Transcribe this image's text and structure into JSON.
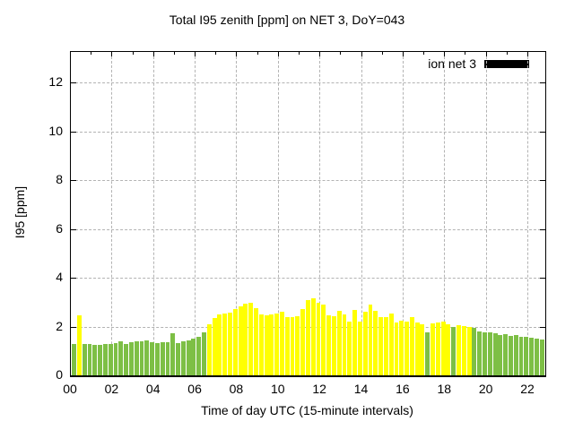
{
  "title": "Total I95 zenith [ppm] on NET 3, DoY=043",
  "legend": {
    "label": "ion net 3",
    "swatch_color": "#000000"
  },
  "axes": {
    "ylabel": "I95 [ppm]",
    "xlabel": "Time of day UTC (15-minute intervals)",
    "y_ticks": [
      0,
      2,
      4,
      6,
      8,
      10,
      12
    ],
    "x_tick_hours": [
      0,
      2,
      4,
      6,
      8,
      10,
      12,
      14,
      16,
      18,
      20,
      22
    ],
    "x_tick_labels": [
      "00",
      "02",
      "04",
      "06",
      "08",
      "10",
      "12",
      "14",
      "16",
      "18",
      "20",
      "22"
    ],
    "ylim": [
      0,
      13.25
    ],
    "xlim_hours": [
      0,
      22.82
    ],
    "grid": "dashed"
  },
  "colors": {
    "green": "#7dbf45",
    "yellow": "#ffff00",
    "grid": "#b3b3b3",
    "axis": "#000000",
    "background": "#ffffff"
  },
  "chart_data": {
    "type": "bar",
    "title": "Total I95 zenith [ppm] on NET 3, DoY=043",
    "xlabel": "Time of day UTC (15-minute intervals)",
    "ylabel": "I95 [ppm]",
    "ylim": [
      0,
      13.25
    ],
    "interval_minutes": 15,
    "legend_entry": "ion net 3",
    "x": [
      "00:00",
      "00:15",
      "00:30",
      "00:45",
      "01:00",
      "01:15",
      "01:30",
      "01:45",
      "02:00",
      "02:15",
      "02:30",
      "02:45",
      "03:00",
      "03:15",
      "03:30",
      "03:45",
      "04:00",
      "04:15",
      "04:30",
      "04:45",
      "05:00",
      "05:15",
      "05:30",
      "05:45",
      "06:00",
      "06:15",
      "06:30",
      "06:45",
      "07:00",
      "07:15",
      "07:30",
      "07:45",
      "08:00",
      "08:15",
      "08:30",
      "08:45",
      "09:00",
      "09:15",
      "09:30",
      "09:45",
      "10:00",
      "10:15",
      "10:30",
      "10:45",
      "11:00",
      "11:15",
      "11:30",
      "11:45",
      "12:00",
      "12:15",
      "12:30",
      "12:45",
      "13:00",
      "13:15",
      "13:30",
      "13:45",
      "14:00",
      "14:15",
      "14:30",
      "14:45",
      "15:00",
      "15:15",
      "15:30",
      "15:45",
      "16:00",
      "16:15",
      "16:30",
      "16:45",
      "17:00",
      "17:15",
      "17:30",
      "17:45",
      "18:00",
      "18:15",
      "18:30",
      "18:45",
      "19:00",
      "19:15",
      "19:30",
      "19:45",
      "20:00",
      "20:15",
      "20:30",
      "20:45",
      "21:00",
      "21:15",
      "21:30",
      "21:45",
      "22:00",
      "22:15",
      "22:30"
    ],
    "values": [
      1.27,
      2.46,
      1.3,
      1.27,
      1.24,
      1.26,
      1.27,
      1.28,
      1.33,
      1.38,
      1.28,
      1.35,
      1.38,
      1.39,
      1.45,
      1.35,
      1.33,
      1.35,
      1.35,
      1.72,
      1.33,
      1.38,
      1.44,
      1.5,
      1.57,
      1.78,
      2.1,
      2.35,
      2.5,
      2.54,
      2.57,
      2.72,
      2.82,
      2.94,
      2.96,
      2.74,
      2.48,
      2.46,
      2.48,
      2.54,
      2.6,
      2.39,
      2.39,
      2.42,
      2.73,
      3.09,
      3.17,
      2.97,
      2.89,
      2.46,
      2.42,
      2.64,
      2.5,
      2.21,
      2.68,
      2.21,
      2.61,
      2.89,
      2.64,
      2.4,
      2.4,
      2.52,
      2.15,
      2.24,
      2.21,
      2.4,
      2.15,
      2.09,
      1.75,
      2.12,
      2.15,
      2.21,
      2.09,
      1.97,
      2.05,
      2.03,
      1.97,
      1.93,
      1.8,
      1.78,
      1.76,
      1.74,
      1.66,
      1.7,
      1.63,
      1.66,
      1.57,
      1.57,
      1.54,
      1.5,
      1.47
    ],
    "bar_colors": [
      "green",
      "yellow",
      "green",
      "green",
      "green",
      "green",
      "green",
      "green",
      "green",
      "green",
      "green",
      "green",
      "green",
      "green",
      "green",
      "green",
      "green",
      "green",
      "green",
      "green",
      "green",
      "green",
      "green",
      "green",
      "green",
      "green",
      "yellow",
      "yellow",
      "yellow",
      "yellow",
      "yellow",
      "yellow",
      "yellow",
      "yellow",
      "yellow",
      "yellow",
      "yellow",
      "yellow",
      "yellow",
      "yellow",
      "yellow",
      "yellow",
      "yellow",
      "yellow",
      "yellow",
      "yellow",
      "yellow",
      "yellow",
      "yellow",
      "yellow",
      "yellow",
      "yellow",
      "yellow",
      "yellow",
      "yellow",
      "yellow",
      "yellow",
      "yellow",
      "yellow",
      "yellow",
      "yellow",
      "yellow",
      "yellow",
      "yellow",
      "yellow",
      "yellow",
      "yellow",
      "yellow",
      "green",
      "yellow",
      "yellow",
      "yellow",
      "yellow",
      "green",
      "yellow",
      "yellow",
      "yellow",
      "green",
      "green",
      "green",
      "green",
      "green",
      "green",
      "green",
      "green",
      "green",
      "green",
      "green",
      "green",
      "green",
      "green"
    ]
  }
}
